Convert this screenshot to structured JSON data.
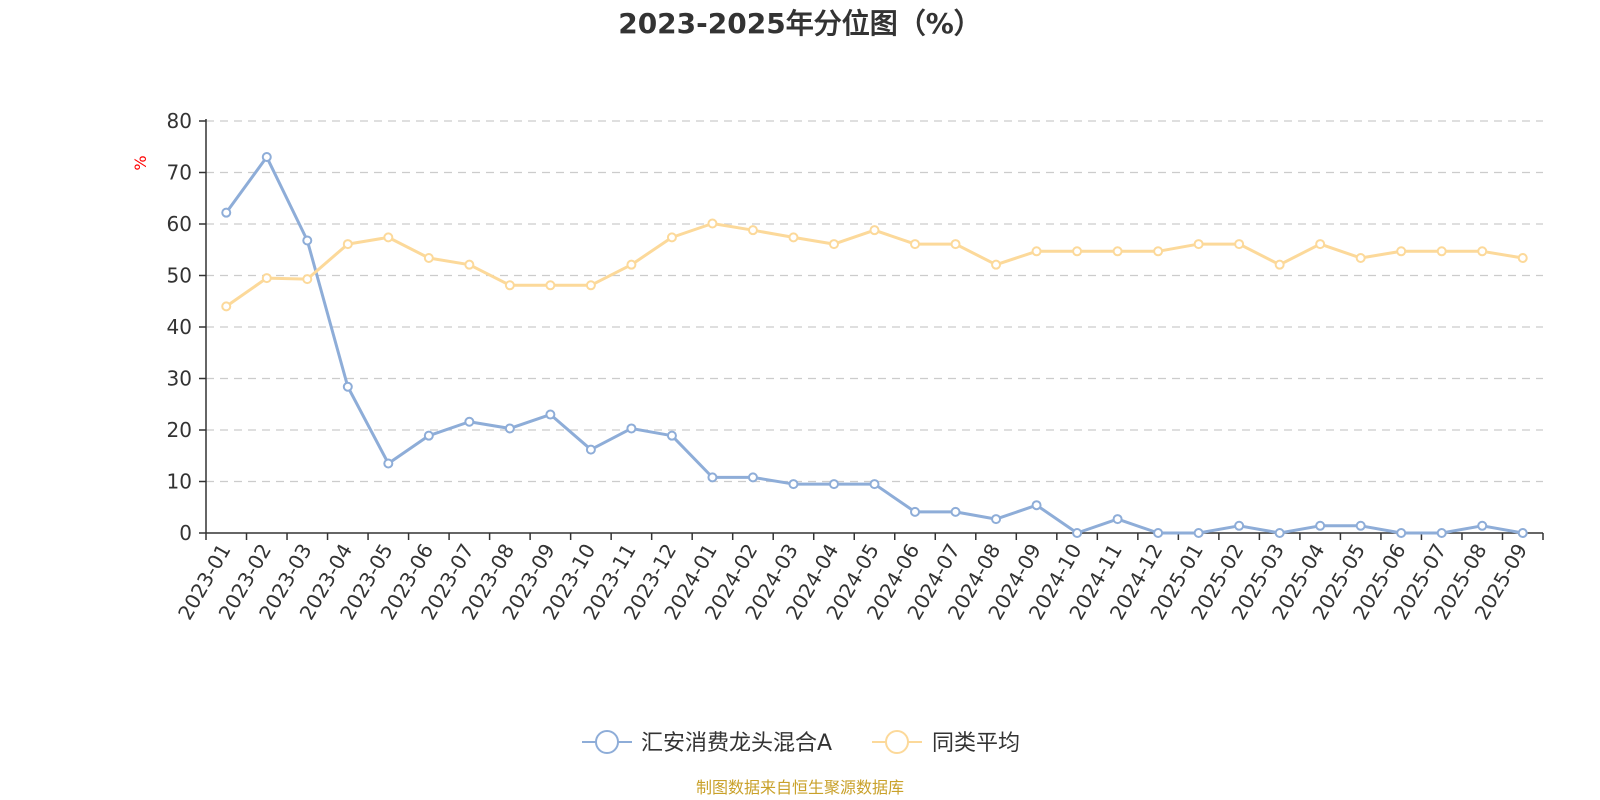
{
  "colors": {
    "series_a": "#8eadd8",
    "series_b": "#fcd99a",
    "axis": "#333333",
    "grid": "#cccccc",
    "unit": "#ff0000",
    "source": "#c9a12a"
  },
  "source_text": "制图数据来自恒生聚源数据库",
  "chart_data": {
    "type": "line",
    "title": "2023-2025年分位图（%）",
    "ylabel": "%",
    "ylim": [
      0,
      80
    ],
    "yticks": [
      0,
      10,
      20,
      30,
      40,
      50,
      60,
      70,
      80
    ],
    "grid": true,
    "legend_position": "bottom",
    "categories": [
      "2023-01",
      "2023-02",
      "2023-03",
      "2023-04",
      "2023-05",
      "2023-06",
      "2023-07",
      "2023-08",
      "2023-09",
      "2023-10",
      "2023-11",
      "2023-12",
      "2024-01",
      "2024-02",
      "2024-03",
      "2024-04",
      "2024-05",
      "2024-06",
      "2024-07",
      "2024-08",
      "2024-09",
      "2024-10",
      "2024-11",
      "2024-12",
      "2025-01",
      "2025-02",
      "2025-03",
      "2025-04",
      "2025-05",
      "2025-06",
      "2025-07",
      "2025-08",
      "2025-09"
    ],
    "series": [
      {
        "name": "汇安消费龙头混合A",
        "values": [
          62.2,
          73.0,
          56.8,
          28.4,
          13.5,
          18.9,
          21.6,
          20.3,
          23.0,
          16.2,
          20.3,
          18.9,
          10.8,
          10.8,
          9.5,
          9.5,
          9.5,
          4.1,
          4.1,
          2.7,
          5.4,
          0.0,
          2.7,
          0.0,
          0.0,
          1.4,
          0.0,
          1.4,
          1.4,
          0.0,
          0.0,
          1.4,
          0.0
        ]
      },
      {
        "name": "同类平均",
        "values": [
          44.0,
          49.5,
          49.3,
          56.1,
          57.4,
          53.4,
          52.1,
          48.1,
          48.1,
          48.1,
          52.1,
          57.4,
          60.1,
          58.8,
          57.4,
          56.1,
          58.8,
          56.1,
          56.1,
          52.1,
          54.7,
          54.7,
          54.7,
          54.7,
          56.1,
          56.1,
          52.1,
          56.1,
          53.4,
          54.7,
          54.7,
          54.7,
          53.4
        ]
      }
    ]
  }
}
